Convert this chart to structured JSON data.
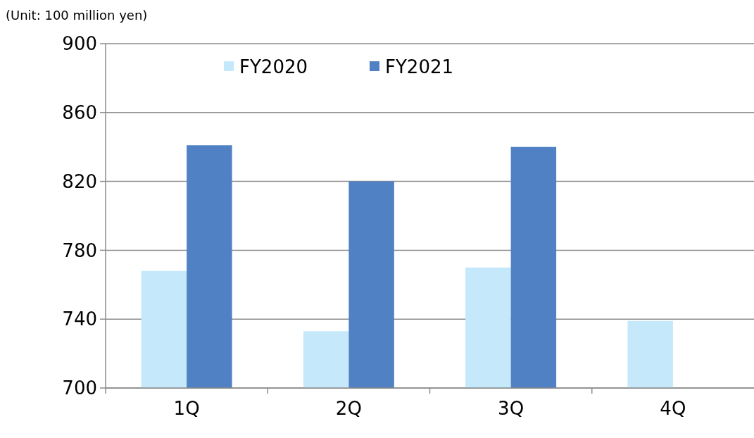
{
  "chart_data": {
    "type": "bar",
    "annotations": [
      "(Unit: 100 million yen)"
    ],
    "categories": [
      "1Q",
      "2Q",
      "3Q",
      "4Q"
    ],
    "series": [
      {
        "name": "FY2020",
        "color": "#c5e8fb",
        "values": [
          768,
          733,
          770,
          739
        ]
      },
      {
        "name": "FY2021",
        "color": "#4f81c4",
        "values": [
          841,
          820,
          840,
          null
        ]
      }
    ],
    "ylim": [
      700,
      900
    ],
    "yticks": [
      700,
      740,
      780,
      820,
      860,
      900
    ],
    "grid": "y",
    "legend": "top"
  }
}
